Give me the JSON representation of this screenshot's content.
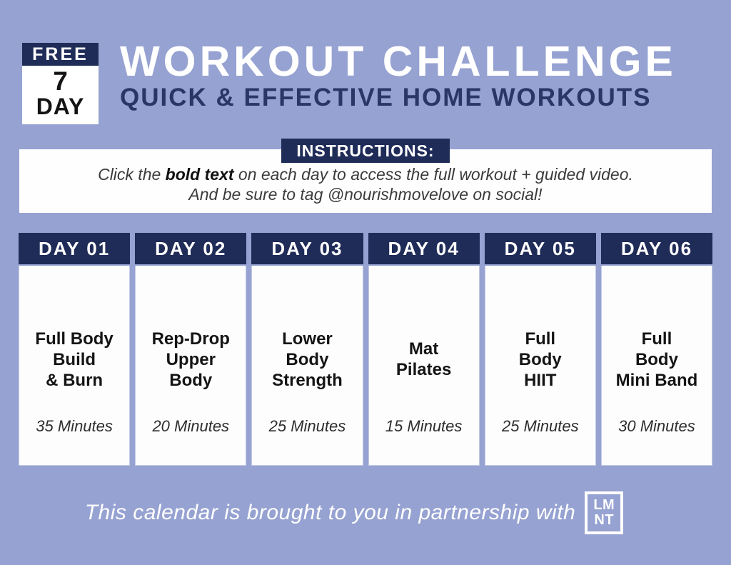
{
  "badge": {
    "free": "FREE",
    "number": "7",
    "day": "DAY"
  },
  "header": {
    "title": "WORKOUT CHALLENGE",
    "subtitle": "QUICK & EFFECTIVE HOME WORKOUTS"
  },
  "instructions": {
    "label": "INSTRUCTIONS:",
    "line1_prefix": "Click the ",
    "line1_bold": "bold text",
    "line1_suffix": " on each day to access the full workout + guided video.",
    "line2": "And be sure to tag @nourishmovelove on social!"
  },
  "days": [
    {
      "label": "DAY 01",
      "title": "Full Body\nBuild\n& Burn",
      "duration": "35 Minutes"
    },
    {
      "label": "DAY 02",
      "title": "Rep-Drop\nUpper\nBody",
      "duration": "20 Minutes"
    },
    {
      "label": "DAY 03",
      "title": "Lower\nBody\nStrength",
      "duration": "25 Minutes"
    },
    {
      "label": "DAY 04",
      "title": "Mat\nPilates",
      "duration": "15 Minutes"
    },
    {
      "label": "DAY 05",
      "title": "Full\nBody\nHIIT",
      "duration": "25 Minutes"
    },
    {
      "label": "DAY 06",
      "title": "Full\nBody\nMini Band",
      "duration": "30 Minutes"
    }
  ],
  "footer": {
    "text": "This calendar is brought to you in partnership with",
    "logo_line1": "LM",
    "logo_line2": "NT"
  },
  "colors": {
    "background": "#96a2d1",
    "navy": "#202c58",
    "subtitle_navy": "#2b3667",
    "card": "#fdfdfe",
    "white": "#ffffff"
  }
}
